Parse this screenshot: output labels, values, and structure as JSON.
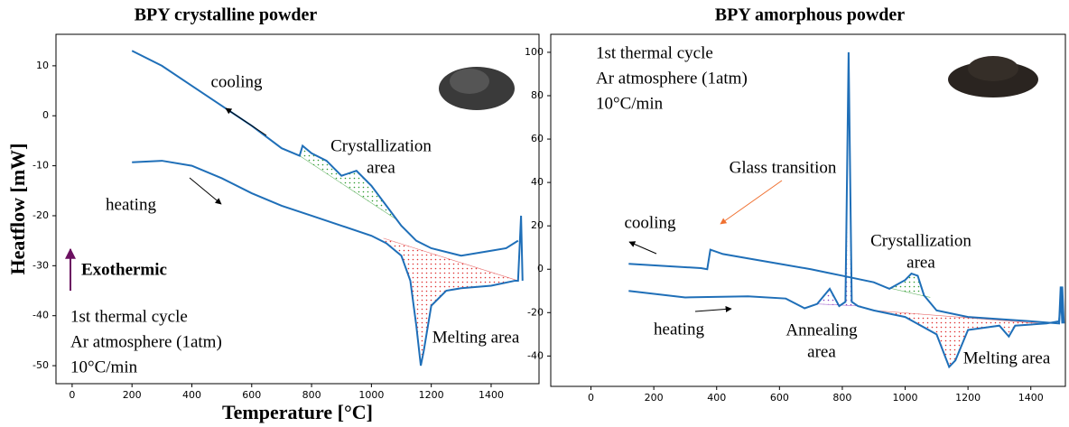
{
  "chart_data": [
    {
      "type": "line",
      "title": "BPY crystalline powder",
      "xlabel": "Temperature [°C]",
      "ylabel": "Heatflow [mW]",
      "xlim": [
        -54,
        1560
      ],
      "ylim": [
        -53.6,
        16.3
      ],
      "xticks": [
        0,
        200,
        400,
        600,
        800,
        1000,
        1200,
        1400
      ],
      "yticks": [
        10,
        0,
        -10,
        -20,
        -30,
        -40,
        -50
      ],
      "series": [
        {
          "name": "cooling",
          "color": "#1f6fb8",
          "x": [
            200,
            300,
            400,
            500,
            600,
            700,
            760,
            770,
            800,
            850,
            900,
            950,
            1000,
            1050,
            1100,
            1150,
            1200,
            1300,
            1400,
            1450,
            1490
          ],
          "values": [
            13,
            10,
            6,
            2,
            -2,
            -6.5,
            -8,
            -6,
            -7.5,
            -9,
            -12,
            -11,
            -14,
            -18,
            -22,
            -25,
            -26.5,
            -28,
            -27,
            -26.5,
            -25
          ]
        },
        {
          "name": "heating",
          "color": "#1f6fb8",
          "x": [
            200,
            300,
            400,
            500,
            600,
            700,
            800,
            900,
            1000,
            1050,
            1100,
            1130,
            1150,
            1165,
            1175,
            1200,
            1250,
            1300,
            1400,
            1480,
            1490,
            1500,
            1505
          ],
          "values": [
            -9.3,
            -9,
            -10,
            -12.5,
            -15.5,
            -18,
            -20,
            -22,
            -24,
            -25.5,
            -28,
            -33,
            -42,
            -50,
            -47,
            -38,
            -35,
            -34.5,
            -34,
            -33,
            -33,
            -20,
            -33
          ]
        }
      ],
      "regions": [
        {
          "series": 0,
          "color": "#2e9a2e",
          "baseline": [
            [
              760,
              -8
            ],
            [
              1090,
              -21
            ]
          ]
        },
        {
          "series": 1,
          "color": "#e03030",
          "baseline": [
            [
              1040,
              -24.5
            ],
            [
              1490,
              -33
            ]
          ]
        }
      ],
      "annotations": [
        {
          "lines": [
            "Crystallization",
            "area"
          ],
          "color": "#2e9a2e"
        },
        {
          "lines": [
            "Melting area"
          ],
          "color": "#e01010"
        },
        {
          "lines": [
            "Exothermic"
          ],
          "color": "#6b1060"
        }
      ],
      "notes": [
        "1st thermal cycle",
        "Ar atmosphere (1atm)",
        "10°C/min"
      ]
    },
    {
      "type": "line",
      "title": "BPY amorphous powder",
      "xlim": [
        -128,
        1510
      ],
      "ylim": [
        -54,
        108.3
      ],
      "xticks": [
        0,
        200,
        400,
        600,
        800,
        1000,
        1200,
        1400
      ],
      "yticks": [
        100,
        80,
        60,
        40,
        20,
        0,
        -20,
        -40
      ],
      "series": [
        {
          "name": "cooling",
          "color": "#1f6fb8",
          "x": [
            120,
            350,
            370,
            380,
            420,
            500,
            600,
            700,
            750,
            800,
            900,
            950,
            1000,
            1020,
            1040,
            1060,
            1100,
            1200,
            1300,
            1400,
            1490,
            1495,
            1500
          ],
          "values": [
            2.5,
            0.5,
            0,
            9,
            7,
            5,
            2.5,
            0,
            -1.5,
            -3,
            -6,
            -9,
            -5,
            -2,
            -3,
            -12,
            -19,
            -22,
            -23,
            -24,
            -25,
            -8,
            -25
          ]
        },
        {
          "name": "heating",
          "color": "#1f6fb8",
          "x": [
            120,
            300,
            500,
            620,
            680,
            720,
            760,
            790,
            810,
            820,
            830,
            850,
            900,
            1000,
            1100,
            1140,
            1160,
            1200,
            1300,
            1330,
            1350,
            1450,
            1490,
            1500,
            1505
          ],
          "values": [
            -10,
            -13,
            -12.5,
            -13.5,
            -18,
            -16,
            -9,
            -17,
            -15,
            100,
            -15,
            -17,
            -19,
            -22,
            -30,
            -45,
            -42,
            -28,
            -26,
            -31,
            -26,
            -25,
            -24,
            -8,
            -25
          ]
        }
      ],
      "regions": [
        {
          "series": 1,
          "color": "#8a3cc0",
          "baseline": [
            [
              720,
              -16
            ],
            [
              860,
              -17
            ]
          ]
        },
        {
          "series": 0,
          "color": "#2e9a2e",
          "baseline": [
            [
              930,
              -8
            ],
            [
              1080,
              -13
            ]
          ]
        },
        {
          "series": 1,
          "color": "#e03030",
          "baseline": [
            [
              900,
              -19
            ],
            [
              1430,
              -25
            ]
          ]
        }
      ],
      "annotations": [
        {
          "lines": [
            "Glass transition"
          ],
          "color": "#f07030"
        },
        {
          "lines": [
            "Crystallization",
            "area"
          ],
          "color": "#2e9a2e"
        },
        {
          "lines": [
            "Annealing",
            "area"
          ],
          "color": "#8a3cc0"
        },
        {
          "lines": [
            "Melting area"
          ],
          "color": "#e01010"
        }
      ],
      "notes": [
        "1st thermal cycle",
        "Ar atmosphere (1atm)",
        "10°C/min"
      ]
    }
  ]
}
